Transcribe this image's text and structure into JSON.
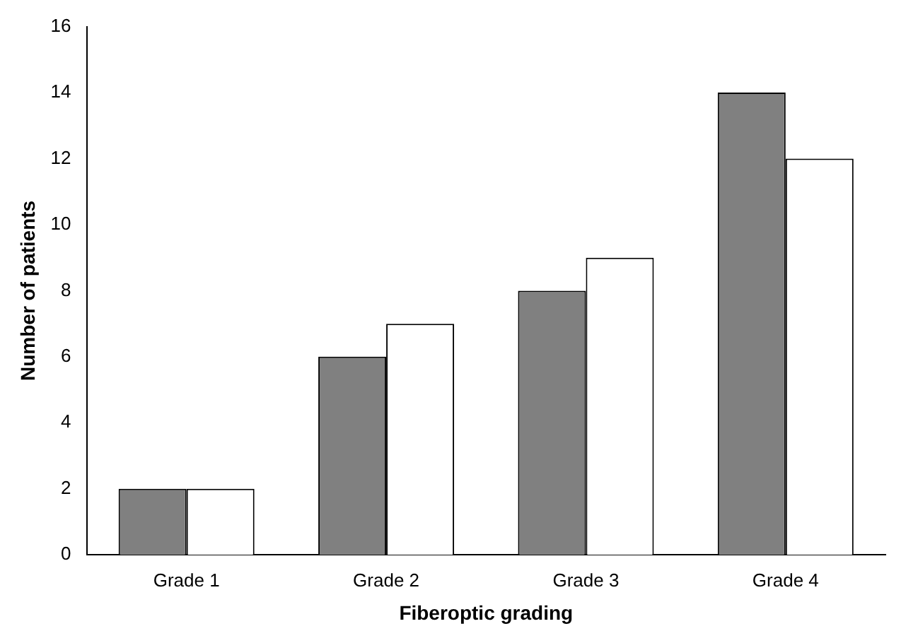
{
  "chart_data": {
    "type": "bar",
    "xlabel": "Fiberoptic grading",
    "ylabel": "Number of patients",
    "categories": [
      "Grade 1",
      "Grade 2",
      "Grade 3",
      "Grade 4"
    ],
    "series": [
      {
        "color": "#808080",
        "values": [
          2,
          6,
          8,
          14
        ]
      },
      {
        "color": "#ffffff",
        "values": [
          2,
          7,
          9,
          12
        ]
      }
    ],
    "ylim": [
      0,
      16
    ],
    "yticks": [
      0,
      2,
      4,
      6,
      8,
      10,
      12,
      14,
      16
    ],
    "grid": false
  }
}
